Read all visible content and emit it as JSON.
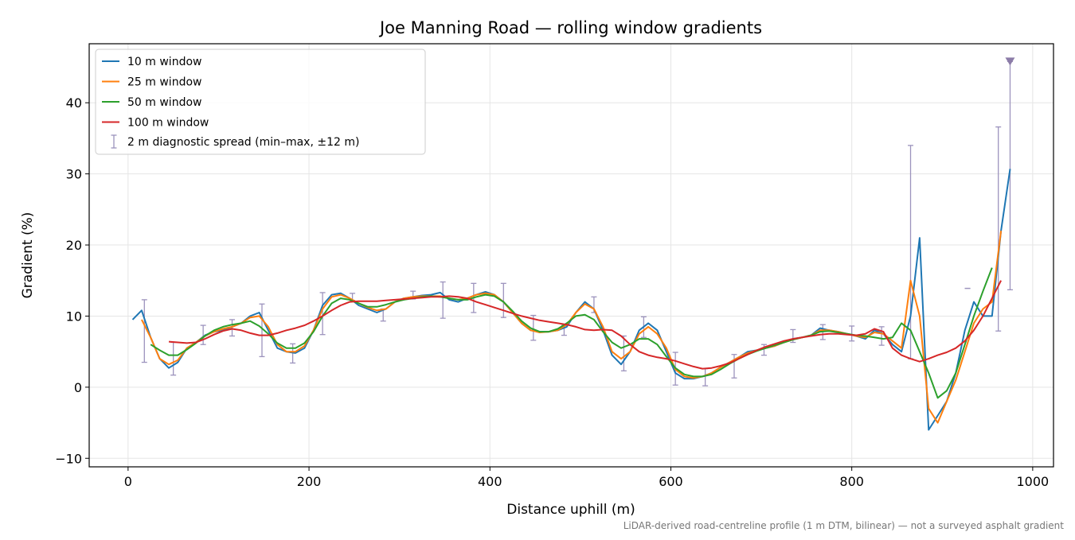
{
  "chart_data": {
    "type": "line",
    "title": "Joe Manning Road — rolling window gradients",
    "xlabel": "Distance uphill (m)",
    "ylabel": "Gradient (%)",
    "footnote": "LiDAR-derived road-centreline profile (1 m DTM, bilinear) — not a surveyed asphalt gradient",
    "xlim": [
      -43,
      1023
    ],
    "ylim": [
      -11.2,
      48.3
    ],
    "xticks": [
      0,
      200,
      400,
      600,
      800,
      1000
    ],
    "yticks": [
      {
        "value": -10,
        "label": "−10"
      },
      0,
      10,
      20,
      30,
      40
    ],
    "grid": true,
    "legend": "upper left",
    "x": [
      5,
      15,
      25,
      35,
      45,
      55,
      65,
      75,
      85,
      95,
      105,
      115,
      125,
      135,
      145,
      155,
      165,
      175,
      185,
      195,
      205,
      215,
      225,
      235,
      245,
      255,
      265,
      275,
      285,
      295,
      305,
      315,
      325,
      335,
      345,
      355,
      365,
      375,
      385,
      395,
      405,
      415,
      425,
      435,
      445,
      455,
      465,
      475,
      485,
      495,
      505,
      515,
      525,
      535,
      545,
      555,
      565,
      575,
      585,
      595,
      605,
      615,
      625,
      635,
      645,
      655,
      665,
      675,
      685,
      695,
      705,
      715,
      725,
      735,
      745,
      755,
      765,
      775,
      785,
      795,
      805,
      815,
      825,
      835,
      845,
      855,
      865,
      875,
      885,
      895,
      905,
      915,
      925,
      935,
      945,
      955,
      965,
      975
    ],
    "series": [
      {
        "name": "10 m window",
        "color": "#1f77b4",
        "values": [
          9.5,
          10.8,
          7,
          4,
          2.7,
          3.5,
          5.5,
          6.3,
          7.3,
          7.8,
          8,
          8.5,
          9,
          10,
          10.5,
          8,
          5.5,
          5,
          4.8,
          5.5,
          8,
          11.5,
          13,
          13.2,
          12.5,
          11.5,
          11,
          10.5,
          11,
          12,
          12.5,
          12.7,
          12.9,
          13,
          13.3,
          12.3,
          12,
          12.5,
          13,
          13.4,
          13,
          12,
          10.5,
          9,
          8,
          7.8,
          7.8,
          8,
          8.5,
          10.5,
          12,
          11,
          8,
          4.5,
          3.2,
          5,
          8,
          9,
          8,
          5,
          2,
          1.2,
          1.2,
          1.5,
          2,
          2.8,
          3.5,
          4.2,
          5,
          5.2,
          5.5,
          5.8,
          6.3,
          6.8,
          7,
          7.3,
          8.3,
          8,
          7.8,
          7.5,
          7.2,
          6.8,
          8,
          7.5,
          6,
          5,
          10,
          21,
          -6,
          -4,
          -2,
          2,
          8,
          12,
          10,
          10,
          22,
          30.7
        ]
      },
      {
        "name": "25 m window",
        "color": "#ff7f0e",
        "values": [
          null,
          9.5,
          7,
          4,
          3.2,
          3.8,
          5.5,
          6.3,
          7.2,
          7.8,
          8.2,
          8.5,
          9,
          9.8,
          10,
          8.5,
          6,
          5,
          5,
          5.8,
          8,
          11,
          12.7,
          13,
          12.5,
          11.8,
          11.2,
          10.8,
          11,
          12,
          12.5,
          12.7,
          12.8,
          12.8,
          12.8,
          12.5,
          12.3,
          12.5,
          13,
          13.2,
          13,
          12,
          10.5,
          9,
          8,
          7.7,
          7.8,
          8,
          8.8,
          10.5,
          11.7,
          11,
          8.5,
          5,
          4,
          5,
          7.5,
          8.5,
          7.5,
          5.5,
          2.5,
          1.5,
          1.3,
          1.5,
          2,
          2.8,
          3.5,
          4.2,
          4.8,
          5.2,
          5.5,
          5.8,
          6.3,
          6.7,
          7,
          7.3,
          8,
          8,
          7.8,
          7.5,
          7.2,
          7,
          7.7,
          7.5,
          6.5,
          5.5,
          15,
          10,
          -3,
          -5,
          -2,
          1,
          5,
          9,
          11,
          12,
          22,
          null
        ]
      },
      {
        "name": "50 m window",
        "color": "#2ca02c",
        "values": [
          null,
          null,
          6,
          5.2,
          4.5,
          4.5,
          5.3,
          6.2,
          7.2,
          8,
          8.5,
          8.8,
          9,
          9.3,
          8.6,
          7.5,
          6.2,
          5.5,
          5.5,
          6.2,
          7.8,
          10,
          11.8,
          12.5,
          12.3,
          11.8,
          11.3,
          11.3,
          11.6,
          12,
          12.3,
          12.5,
          12.7,
          12.8,
          12.7,
          12.5,
          12.3,
          12.3,
          12.7,
          13,
          12.8,
          12,
          10.7,
          9.3,
          8.3,
          7.8,
          7.8,
          8.2,
          9,
          10,
          10.2,
          9.5,
          7.8,
          6.3,
          5.5,
          6,
          6.8,
          6.8,
          6,
          4.3,
          2.7,
          1.8,
          1.5,
          1.5,
          1.8,
          2.5,
          3.3,
          4,
          4.6,
          5.1,
          5.5,
          5.9,
          6.3,
          6.7,
          7,
          7.3,
          7.8,
          7.9,
          7.7,
          7.5,
          7.3,
          7.2,
          7,
          6.8,
          7,
          9,
          8,
          5,
          2,
          -1.5,
          -0.5,
          2,
          6,
          10,
          13.5,
          16.8,
          null,
          null
        ]
      },
      {
        "name": "100 m window",
        "color": "#d62728",
        "values": [
          null,
          null,
          null,
          null,
          6.4,
          6.3,
          6.2,
          6.3,
          6.8,
          7.4,
          7.9,
          8.2,
          8,
          7.6,
          7.3,
          7.3,
          7.6,
          8,
          8.3,
          8.7,
          9.3,
          10,
          10.8,
          11.5,
          12,
          12.1,
          12.1,
          12.1,
          12.2,
          12.3,
          12.4,
          12.5,
          12.6,
          12.7,
          12.7,
          12.8,
          12.7,
          12.5,
          12,
          11.6,
          11.2,
          10.8,
          10.4,
          10,
          9.7,
          9.4,
          9.2,
          9,
          8.8,
          8.5,
          8.1,
          8,
          8.1,
          8,
          7.2,
          6,
          5,
          4.5,
          4.2,
          4,
          3.7,
          3.3,
          2.9,
          2.6,
          2.7,
          3,
          3.4,
          4,
          4.6,
          5.2,
          5.7,
          6.1,
          6.5,
          6.8,
          7,
          7.2,
          7.4,
          7.5,
          7.5,
          7.4,
          7.3,
          7.5,
          8.2,
          7.8,
          5.5,
          4.5,
          4,
          3.6,
          4,
          4.5,
          4.9,
          5.5,
          6.5,
          8,
          10,
          12.5,
          15,
          null
        ]
      }
    ],
    "errorbars": {
      "name": "2 m diagnostic spread (min–max, ±12 m)",
      "color": "#9c93bd",
      "x": [
        18,
        50,
        83,
        115,
        148,
        182,
        215,
        248,
        282,
        315,
        348,
        382,
        415,
        448,
        482,
        515,
        548,
        570,
        605,
        638,
        670,
        703,
        735,
        768,
        800,
        833,
        865,
        928,
        962,
        975
      ],
      "low": [
        3.5,
        1.7,
        6,
        7.2,
        4.3,
        3.4,
        7.4,
        12.2,
        9.3,
        12.4,
        9.7,
        10.5,
        9.8,
        6.6,
        7.3,
        10.5,
        2.3,
        7,
        0.3,
        0.2,
        1.3,
        4.5,
        6.3,
        6.7,
        6.5,
        5.9,
        4,
        13.9,
        7.9,
        13.7
      ],
      "high": [
        12.3,
        6.3,
        8.7,
        9.5,
        11.7,
        6.1,
        13.3,
        13.2,
        11,
        13.5,
        14.8,
        14.6,
        14.6,
        10.1,
        8.7,
        12.7,
        7.2,
        9.9,
        4.9,
        2.6,
        4.6,
        6,
        8.1,
        8.8,
        8.6,
        8.5,
        34,
        13.9,
        36.6,
        45.8
      ]
    }
  }
}
